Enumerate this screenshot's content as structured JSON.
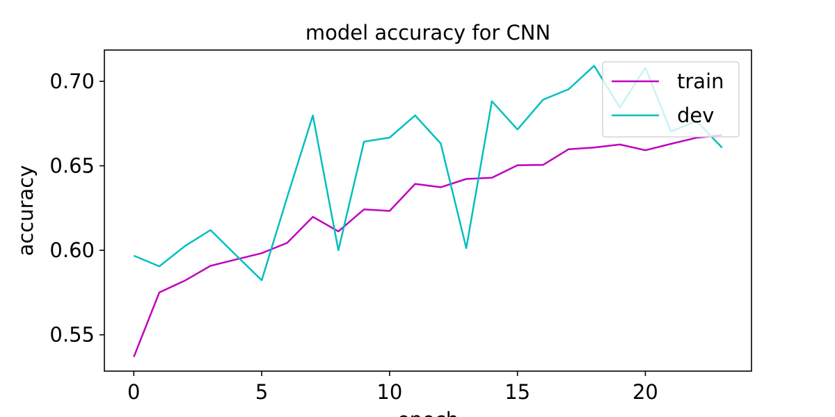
{
  "chart_data": {
    "type": "line",
    "title": "model accuracy for CNN",
    "xlabel": "epoch",
    "ylabel": "accuracy",
    "xlim": [
      -1.15,
      24.15
    ],
    "ylim": [
      0.5285,
      0.7185
    ],
    "x_ticks": [
      0,
      5,
      10,
      15,
      20
    ],
    "y_ticks": [
      0.55,
      0.6,
      0.65,
      0.7
    ],
    "x_tick_labels": [
      "0",
      "5",
      "10",
      "15",
      "20"
    ],
    "y_tick_labels": [
      "0.55",
      "0.60",
      "0.65",
      "0.70"
    ],
    "grid": false,
    "legend_position": "top-right",
    "x": [
      0,
      1,
      2,
      3,
      4,
      5,
      6,
      7,
      8,
      9,
      10,
      11,
      12,
      13,
      14,
      15,
      16,
      17,
      18,
      19,
      20,
      21,
      22,
      23
    ],
    "series": [
      {
        "name": "train",
        "color": "#bf00bf",
        "values": [
          0.5369,
          0.5751,
          0.5821,
          0.5908,
          0.5946,
          0.5983,
          0.6044,
          0.6198,
          0.6112,
          0.6242,
          0.6233,
          0.6393,
          0.6373,
          0.6422,
          0.6429,
          0.6503,
          0.6505,
          0.6598,
          0.6608,
          0.6626,
          0.6592,
          0.663,
          0.6666,
          0.6682
        ]
      },
      {
        "name": "dev",
        "color": "#00bfbf",
        "values": [
          0.5968,
          0.5905,
          0.6025,
          0.612,
          0.597,
          0.5823,
          0.6315,
          0.6798,
          0.6,
          0.6643,
          0.6667,
          0.6798,
          0.6632,
          0.6013,
          0.6882,
          0.6715,
          0.6891,
          0.6953,
          0.7092,
          0.6845,
          0.7081,
          0.6703,
          0.6765,
          0.6607
        ]
      }
    ]
  }
}
